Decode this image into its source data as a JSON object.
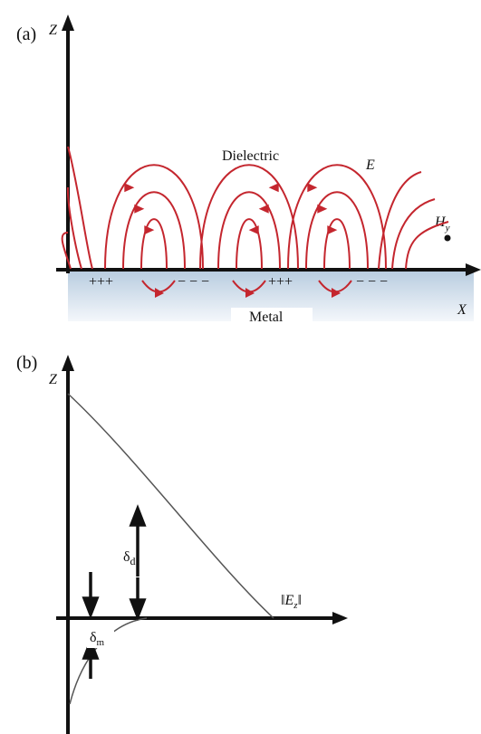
{
  "panel_a": {
    "label": "(a)",
    "z_axis": "Z",
    "x_axis": "X",
    "dielectric": "Dielectric",
    "field": "E",
    "magnetic": {
      "symbol": "H",
      "subscript": "y"
    },
    "charges": [
      "+++",
      "− − −",
      "+++",
      "− − −"
    ],
    "metal": "Metal"
  },
  "panel_b": {
    "label": "(b)",
    "z_axis": "Z",
    "delta_d": {
      "symbol": "δ",
      "subscript": "d"
    },
    "delta_m": {
      "symbol": "δ",
      "subscript": "m"
    },
    "field_magnitude": {
      "open": "‖",
      "symbol": "E",
      "subscript": "z",
      "close": "‖"
    }
  }
}
